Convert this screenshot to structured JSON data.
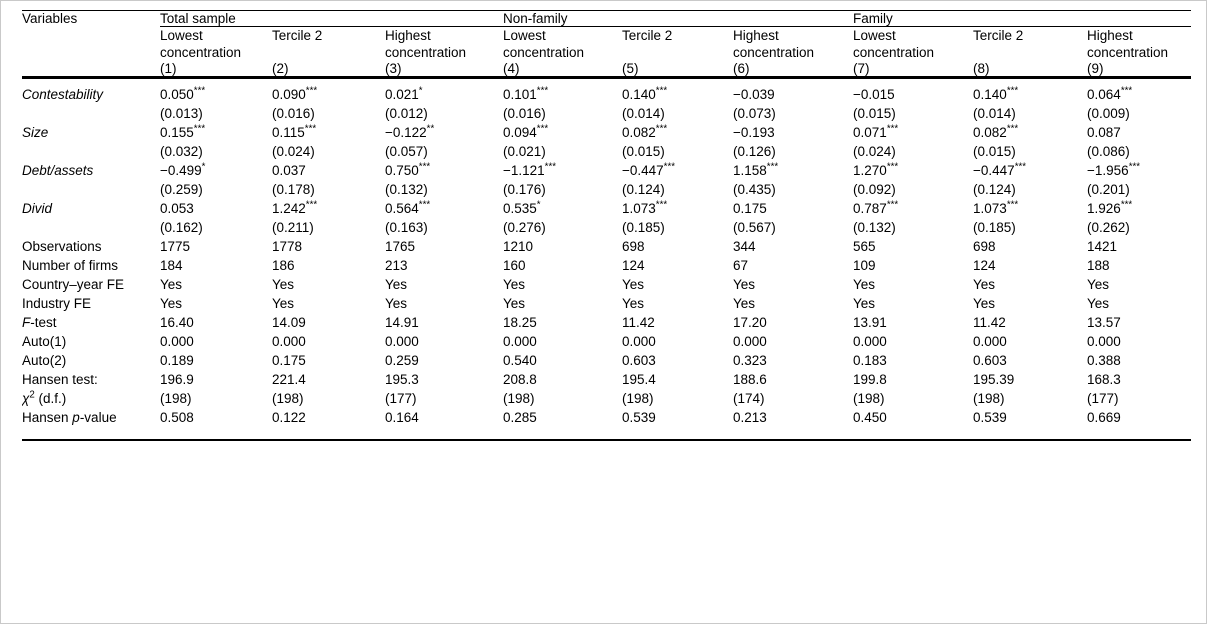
{
  "table": {
    "corner_label": "Variables",
    "groups": [
      {
        "label": "Total sample"
      },
      {
        "label": "Non-family"
      },
      {
        "label": "Family"
      }
    ],
    "subheaders": [
      "Lowest concentration",
      "Tercile 2",
      "Highest concentration",
      "Lowest concentration",
      "Tercile 2",
      "Highest concentration",
      "Lowest concentration",
      "Tercile 2",
      "Highest concentration"
    ],
    "column_numbers": [
      "(1)",
      "(2)",
      "(3)",
      "(4)",
      "(5)",
      "(6)",
      "(7)",
      "(8)",
      "(9)"
    ],
    "rows": [
      {
        "label_parts": [
          {
            "t": "Contestability",
            "i": true
          }
        ],
        "values": [
          "0.050***",
          "0.090***",
          "0.021*",
          "0.101***",
          "0.140***",
          "−0.039",
          "−0.015",
          "0.140***",
          "0.064***"
        ]
      },
      {
        "label_parts": [],
        "values": [
          "(0.013)",
          "(0.016)",
          "(0.012)",
          "(0.016)",
          "(0.014)",
          "(0.073)",
          "(0.015)",
          "(0.014)",
          "(0.009)"
        ]
      },
      {
        "label_parts": [
          {
            "t": "Size",
            "i": true
          }
        ],
        "values": [
          "0.155***",
          "0.115***",
          "−0.122**",
          "0.094***",
          "0.082***",
          "−0.193",
          "0.071***",
          "0.082***",
          "0.087"
        ]
      },
      {
        "label_parts": [],
        "values": [
          "(0.032)",
          "(0.024)",
          "(0.057)",
          "(0.021)",
          "(0.015)",
          "(0.126)",
          "(0.024)",
          "(0.015)",
          "(0.086)"
        ]
      },
      {
        "label_parts": [
          {
            "t": "Debt/assets",
            "i": true
          }
        ],
        "values": [
          "−0.499*",
          "0.037",
          "0.750***",
          "−1.121***",
          "−0.447***",
          "1.158***",
          "1.270***",
          "−0.447***",
          "−1.956***"
        ]
      },
      {
        "label_parts": [],
        "values": [
          "(0.259)",
          "(0.178)",
          "(0.132)",
          "(0.176)",
          "(0.124)",
          "(0.435)",
          "(0.092)",
          "(0.124)",
          "(0.201)"
        ]
      },
      {
        "label_parts": [
          {
            "t": "Divid",
            "i": true
          }
        ],
        "values": [
          "0.053",
          "1.242***",
          "0.564***",
          "0.535*",
          "1.073***",
          "0.175",
          "0.787***",
          "1.073***",
          "1.926***"
        ]
      },
      {
        "label_parts": [],
        "values": [
          "(0.162)",
          "(0.211)",
          "(0.163)",
          "(0.276)",
          "(0.185)",
          "(0.567)",
          "(0.132)",
          "(0.185)",
          "(0.262)"
        ]
      },
      {
        "label_parts": [
          {
            "t": "Observations"
          }
        ],
        "values": [
          "1775",
          "1778",
          "1765",
          "1210",
          "698",
          "344",
          "565",
          "698",
          "1421"
        ]
      },
      {
        "label_parts": [
          {
            "t": "Number of firms"
          }
        ],
        "values": [
          "184",
          "186",
          "213",
          "160",
          "124",
          "67",
          "109",
          "124",
          "188"
        ]
      },
      {
        "label_parts": [
          {
            "t": "Country–year FE"
          }
        ],
        "values": [
          "Yes",
          "Yes",
          "Yes",
          "Yes",
          "Yes",
          "Yes",
          "Yes",
          "Yes",
          "Yes"
        ]
      },
      {
        "label_parts": [
          {
            "t": "Industry FE"
          }
        ],
        "values": [
          "Yes",
          "Yes",
          "Yes",
          "Yes",
          "Yes",
          "Yes",
          "Yes",
          "Yes",
          "Yes"
        ]
      },
      {
        "label_parts": [
          {
            "t": "F",
            "i": true
          },
          {
            "t": "-test"
          }
        ],
        "values": [
          "16.40",
          "14.09",
          "14.91",
          "18.25",
          "11.42",
          "17.20",
          "13.91",
          "11.42",
          "13.57"
        ]
      },
      {
        "label_parts": [
          {
            "t": "Auto(1)"
          }
        ],
        "values": [
          "0.000",
          "0.000",
          "0.000",
          "0.000",
          "0.000",
          "0.000",
          "0.000",
          "0.000",
          "0.000"
        ]
      },
      {
        "label_parts": [
          {
            "t": "Auto(2)"
          }
        ],
        "values": [
          "0.189",
          "0.175",
          "0.259",
          "0.540",
          "0.603",
          "0.323",
          "0.183",
          "0.603",
          "0.388"
        ]
      },
      {
        "label_parts": [
          {
            "t": "Hansen test:"
          }
        ],
        "values": [
          "196.9",
          "221.4",
          "195.3",
          "208.8",
          "195.4",
          "188.6",
          "199.8",
          "195.39",
          "168.3"
        ]
      },
      {
        "label_parts": [
          {
            "t": "χ",
            "i": true
          },
          {
            "t": "2",
            "sup": true
          },
          {
            "t": " (d.f.)"
          }
        ],
        "values": [
          "(198)",
          "(198)",
          "(177)",
          "(198)",
          "(198)",
          "(174)",
          "(198)",
          "(198)",
          "(177)"
        ]
      },
      {
        "label_parts": [
          {
            "t": "Hansen "
          },
          {
            "t": "p",
            "i": true
          },
          {
            "t": "-value"
          }
        ],
        "values": [
          "0.508",
          "0.122",
          "0.164",
          "0.285",
          "0.539",
          "0.213",
          "0.450",
          "0.539",
          "0.669"
        ]
      }
    ]
  }
}
